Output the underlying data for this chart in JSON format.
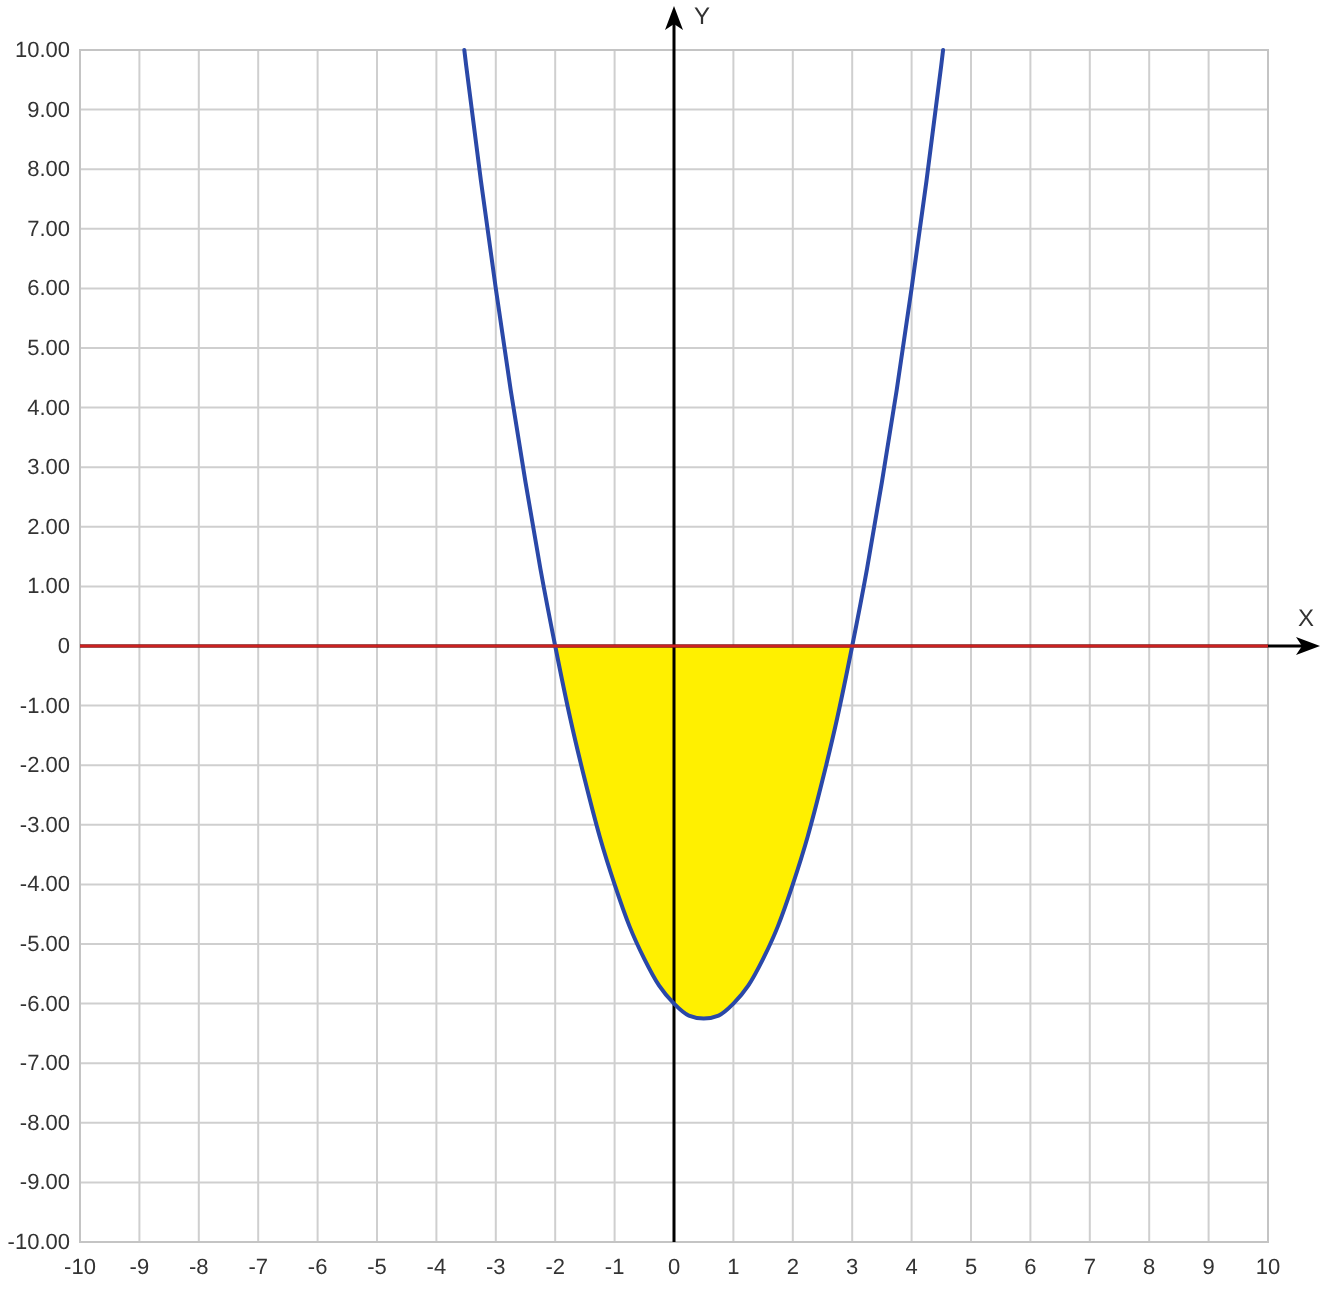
{
  "chart_data": {
    "type": "line",
    "xlabel": "X",
    "ylabel": "Y",
    "xlim": [
      -10,
      10
    ],
    "ylim": [
      -10,
      10
    ],
    "xticks": [
      -10,
      -9,
      -8,
      -7,
      -6,
      -5,
      -4,
      -3,
      -2,
      -1,
      0,
      1,
      2,
      3,
      4,
      5,
      6,
      7,
      8,
      9,
      10
    ],
    "yticks": [
      {
        "value": 10,
        "label": "10.00"
      },
      {
        "value": 9,
        "label": "9.00"
      },
      {
        "value": 8,
        "label": "8.00"
      },
      {
        "value": 7,
        "label": "7.00"
      },
      {
        "value": 6,
        "label": "6.00"
      },
      {
        "value": 5,
        "label": "5.00"
      },
      {
        "value": 4,
        "label": "4.00"
      },
      {
        "value": 3,
        "label": "3.00"
      },
      {
        "value": 2,
        "label": "2.00"
      },
      {
        "value": 1,
        "label": "1.00"
      },
      0,
      {
        "value": -1,
        "label": "-1.00"
      },
      {
        "value": -2,
        "label": "-2.00"
      },
      {
        "value": -3,
        "label": "-3.00"
      },
      {
        "value": -4,
        "label": "-4.00"
      },
      {
        "value": -5,
        "label": "-5.00"
      },
      {
        "value": -6,
        "label": "-6.00"
      },
      {
        "value": -7,
        "label": "-7.00"
      },
      {
        "value": -8,
        "label": "-8.00"
      },
      {
        "value": -9,
        "label": "-9.00"
      },
      {
        "value": -10,
        "label": "-10.00"
      }
    ],
    "grid": true,
    "series": [
      {
        "type": "area",
        "color": "#fff000",
        "x": [
          -2,
          -1.75,
          -1.5,
          -1.25,
          -1,
          -0.75,
          -0.5,
          -0.25,
          0,
          0.25,
          0.5,
          0.75,
          1,
          1.25,
          1.5,
          1.75,
          2,
          2.25,
          2.5,
          2.75,
          3
        ],
        "values": [
          0,
          -1.2,
          -2.25,
          -3.2,
          -4,
          -4.7,
          -5.25,
          -5.7,
          -6,
          -6.2,
          -6.25,
          -6.2,
          -6,
          -5.7,
          -5.25,
          -4.7,
          -4,
          -3.2,
          -2.25,
          -1.2,
          0
        ]
      },
      {
        "color": "#2a48a8",
        "x": [
          -3.53,
          -3.5,
          -3.25,
          -3,
          -2.75,
          -2.5,
          -2.25,
          -2,
          -1.75,
          -1.5,
          -1.25,
          -1,
          -0.75,
          -0.5,
          -0.25,
          0,
          0.25,
          0.5,
          0.75,
          1,
          1.25,
          1.5,
          1.75,
          2,
          2.25,
          2.5,
          2.75,
          3,
          3.25,
          3.5,
          3.75,
          4,
          4.25,
          4.5,
          4.53
        ],
        "values": [
          10,
          9.75,
          7.8,
          6,
          4.3,
          2.75,
          1.3,
          0,
          -1.2,
          -2.25,
          -3.2,
          -4,
          -4.7,
          -5.25,
          -5.7,
          -6,
          -6.2,
          -6.25,
          -6.2,
          -6,
          -5.7,
          -5.25,
          -4.7,
          -4,
          -3.2,
          -2.25,
          -1.2,
          0,
          1.3,
          2.75,
          4.3,
          6,
          7.8,
          9.75,
          10
        ]
      }
    ],
    "ref_lines": [
      {
        "axis": "y",
        "value": 0,
        "color": "#cc2020"
      }
    ]
  }
}
